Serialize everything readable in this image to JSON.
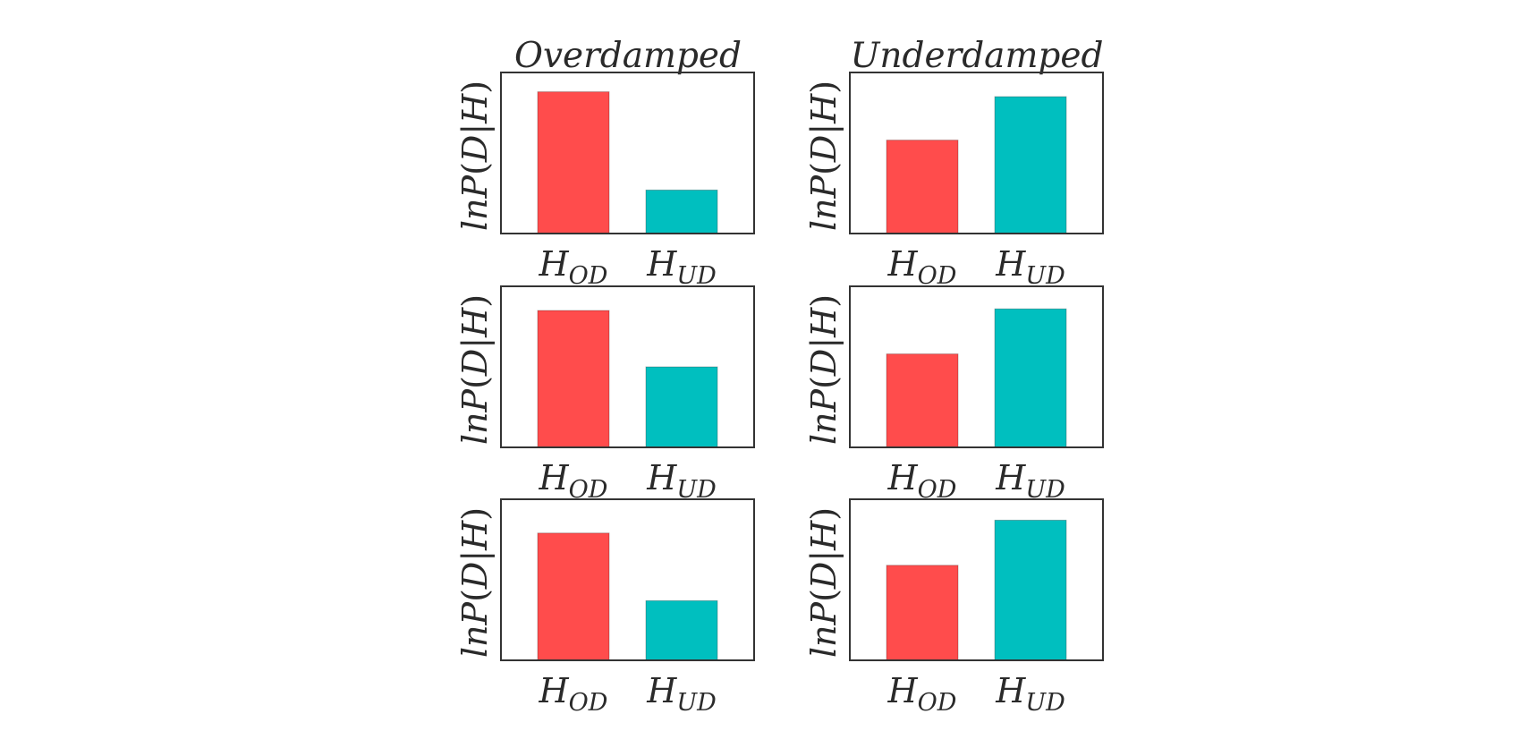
{
  "colors": {
    "od": "#ff4c4c",
    "ud": "#00bfbf",
    "axes": "#333333",
    "text": "#2a2a2a"
  },
  "columns": [
    {
      "title": "Overdamped"
    },
    {
      "title": "Underdamped"
    }
  ],
  "ylabel": {
    "pre": "ln",
    "p": "P",
    "open": "(",
    "d": "D",
    "bar": "|",
    "h": "H",
    "close": ")"
  },
  "categories": [
    {
      "base": "H",
      "sub": "OD"
    },
    {
      "base": "H",
      "sub": "UD"
    }
  ],
  "chart_data": [
    {
      "type": "bar",
      "title": "Overdamped",
      "ylabel": "lnP(D|H)",
      "categories": [
        "H_OD",
        "H_UD"
      ],
      "values": [
        0.88,
        0.27
      ],
      "ylim": [
        0,
        1
      ]
    },
    {
      "type": "bar",
      "title": "Underdamped",
      "ylabel": "lnP(D|H)",
      "categories": [
        "H_OD",
        "H_UD"
      ],
      "values": [
        0.58,
        0.85
      ],
      "ylim": [
        0,
        1
      ]
    },
    {
      "type": "bar",
      "title": "",
      "ylabel": "lnP(D|H)",
      "categories": [
        "H_OD",
        "H_UD"
      ],
      "values": [
        0.85,
        0.5
      ],
      "ylim": [
        0,
        1
      ]
    },
    {
      "type": "bar",
      "title": "",
      "ylabel": "lnP(D|H)",
      "categories": [
        "H_OD",
        "H_UD"
      ],
      "values": [
        0.58,
        0.86
      ],
      "ylim": [
        0,
        1
      ]
    },
    {
      "type": "bar",
      "title": "",
      "ylabel": "lnP(D|H)",
      "categories": [
        "H_OD",
        "H_UD"
      ],
      "values": [
        0.79,
        0.37
      ],
      "ylim": [
        0,
        1
      ]
    },
    {
      "type": "bar",
      "title": "",
      "ylabel": "lnP(D|H)",
      "categories": [
        "H_OD",
        "H_UD"
      ],
      "values": [
        0.59,
        0.87
      ],
      "ylim": [
        0,
        1
      ]
    }
  ]
}
